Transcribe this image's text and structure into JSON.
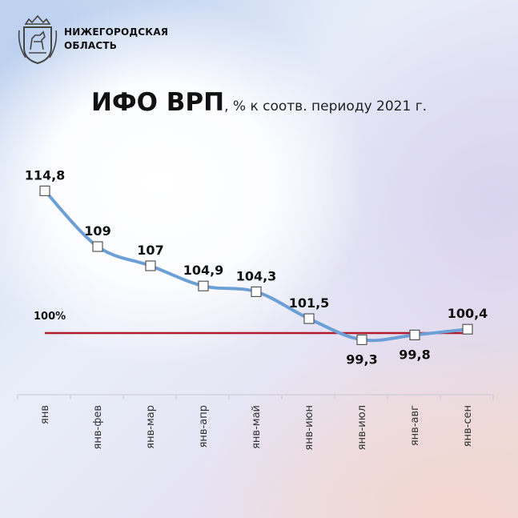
{
  "region": {
    "name_line1": "НИЖЕГОРОДСКАЯ",
    "name_line2": "ОБЛАСТЬ"
  },
  "title": {
    "main": "ИФО ВРП",
    "sub": ", % к соотв. периоду 2021 г."
  },
  "chart_data": {
    "type": "line",
    "categories": [
      "янв",
      "янв-фев",
      "янв-мар",
      "янв-апр",
      "янв-май",
      "янв-июн",
      "янв-июл",
      "янв-авг",
      "янв-сен"
    ],
    "values": [
      114.8,
      109,
      107,
      104.9,
      104.3,
      101.5,
      99.3,
      99.8,
      100.4
    ],
    "value_labels": [
      "114,8",
      "109",
      "107",
      "104,9",
      "104,3",
      "101,5",
      "99,3",
      "99,8",
      "100,4"
    ],
    "reference": {
      "value": 100,
      "label": "100%",
      "color": "#b01c2e"
    },
    "line_color": "#6b9fd6",
    "ylim": [
      96.5,
      118
    ],
    "grid": false,
    "title": "ИФО ВРП, % к соотв. периоду 2021 г."
  }
}
